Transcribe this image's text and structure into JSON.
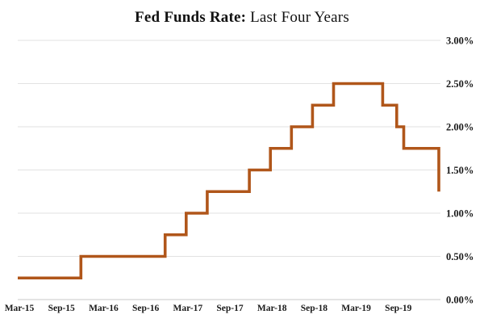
{
  "chart_data": {
    "type": "line",
    "subtype": "step",
    "title": {
      "bold": "Fed Funds Rate:",
      "regular": " Last Four Years"
    },
    "x_tick_labels": [
      "Mar-15",
      "Sep-15",
      "Mar-16",
      "Sep-16",
      "Mar-17",
      "Sep-17",
      "Mar-18",
      "Sep-18",
      "Mar-19",
      "Sep-19"
    ],
    "y_tick_labels": [
      "0.00%",
      "0.50%",
      "1.00%",
      "1.50%",
      "2.00%",
      "2.50%",
      "3.00%"
    ],
    "y_tick_values": [
      0,
      0.5,
      1.0,
      1.5,
      2.0,
      2.5,
      3.0
    ],
    "ylim": [
      0,
      3
    ],
    "x_range_months": [
      "Mar-15",
      "Mar-20"
    ],
    "grid": "horizontal",
    "legend": "none",
    "colors": {
      "line": "#b0561a",
      "axis_text": "#1a1a1a",
      "gridline": "#e2e2e2",
      "axis_line": "#c9c9c9"
    },
    "series": [
      {
        "name": "Fed Funds Rate",
        "step_changes": [
          {
            "month": "Mar-15",
            "rate": 0.25
          },
          {
            "month": "Dec-15",
            "rate": 0.5
          },
          {
            "month": "Dec-16",
            "rate": 0.75
          },
          {
            "month": "Mar-17",
            "rate": 1.0
          },
          {
            "month": "Jun-17",
            "rate": 1.25
          },
          {
            "month": "Dec-17",
            "rate": 1.5
          },
          {
            "month": "Mar-18",
            "rate": 1.75
          },
          {
            "month": "Jun-18",
            "rate": 2.0
          },
          {
            "month": "Sep-18",
            "rate": 2.25
          },
          {
            "month": "Dec-18",
            "rate": 2.5
          },
          {
            "month": "Jul-19",
            "rate": 2.25
          },
          {
            "month": "Sep-19",
            "rate": 2.0
          },
          {
            "month": "Oct-19",
            "rate": 1.75
          },
          {
            "month": "Mar-20",
            "rate": 1.25
          }
        ],
        "final_month": "Mar-20",
        "final_rate": 1.25
      }
    ]
  }
}
